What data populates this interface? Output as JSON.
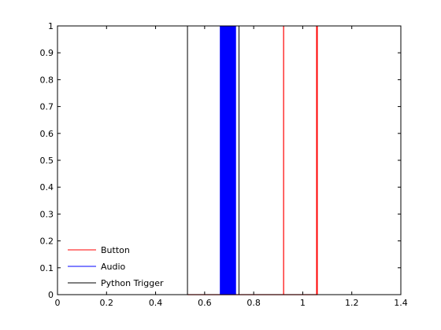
{
  "chart_data": {
    "type": "line",
    "title": "",
    "xlabel": "",
    "ylabel": "",
    "xlim": [
      0,
      1.4
    ],
    "ylim": [
      0,
      1
    ],
    "xticks": [
      "0",
      "0.2",
      "0.4",
      "0.6",
      "0.8",
      "1",
      "1.2",
      "1.4"
    ],
    "yticks": [
      "0",
      "0.1",
      "0.2",
      "0.3",
      "0.4",
      "0.5",
      "0.6",
      "0.7",
      "0.8",
      "0.9",
      "1"
    ],
    "grid": false,
    "legend_position": "bottom-left",
    "series": [
      {
        "name": "Button",
        "color": "#ff0000",
        "points": [
          [
            0.53,
            0
          ],
          [
            0.662,
            0
          ],
          [
            0.922,
            0
          ],
          [
            0.922,
            1
          ],
          [
            0.922,
            0
          ],
          [
            1.058,
            0
          ],
          [
            1.058,
            1
          ],
          [
            1.058,
            0
          ]
        ]
      },
      {
        "name": "Audio",
        "color": "#0000ff",
        "band": [
          0.662,
          0.728
        ]
      },
      {
        "name": "Python Trigger",
        "color": "#000000",
        "points": [
          [
            0.53,
            0
          ],
          [
            0.53,
            1
          ],
          [
            0.53,
            0
          ],
          [
            0.74,
            0
          ],
          [
            0.74,
            1
          ],
          [
            0.74,
            0
          ]
        ]
      }
    ]
  }
}
